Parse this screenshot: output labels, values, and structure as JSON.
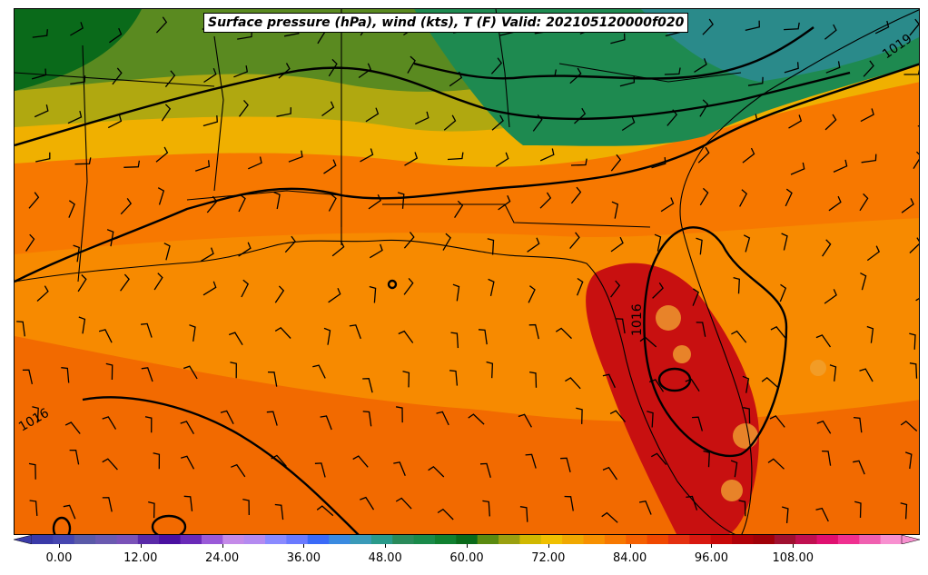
{
  "title": "Surface pressure (hPa), wind (kts), T (F) Valid: 202105120000f020",
  "isobar_labels": [
    "1019",
    "1016",
    "1016"
  ],
  "colorbar": {
    "tick_labels": [
      "0.00",
      "12.00",
      "24.00",
      "36.00",
      "48.00",
      "60.00",
      "72.00",
      "84.00",
      "96.00",
      "108.00"
    ],
    "colors": [
      "#3a3aa8",
      "#4646b0",
      "#5a5aa8",
      "#6a5ab0",
      "#7a52b8",
      "#5a2aa8",
      "#4a10a0",
      "#6a2ab8",
      "#9a5ad8",
      "#c48ae8",
      "#b48af0",
      "#8a8aff",
      "#6a7aff",
      "#3a6af8",
      "#3a8ae0",
      "#3a9ab8",
      "#2a9a8a",
      "#2a8a5a",
      "#1a8a4a",
      "#108030",
      "#0a6a1a",
      "#5a8a10",
      "#9aa010",
      "#d0b800",
      "#f0c000",
      "#f0a800",
      "#f79000",
      "#f77800",
      "#f56000",
      "#f04800",
      "#e43010",
      "#d81810",
      "#c80808",
      "#b00008",
      "#a00008",
      "#a01030",
      "#c01050",
      "#e01070",
      "#f03090",
      "#f060b0",
      "#f890d0"
    ]
  },
  "chart_data": {
    "type": "map",
    "title": "Surface pressure (hPa), wind (kts), T (F) Valid: 202105120000f020",
    "fields": [
      "surface pressure (hPa) contours",
      "wind barbs (kts)",
      "temperature (F) filled"
    ],
    "colorbar_range": [
      -4,
      124
    ],
    "colorbar_ticks": [
      0,
      12,
      24,
      36,
      48,
      60,
      72,
      84,
      96,
      108
    ],
    "isobar_values": [
      1016,
      1019
    ]
  }
}
